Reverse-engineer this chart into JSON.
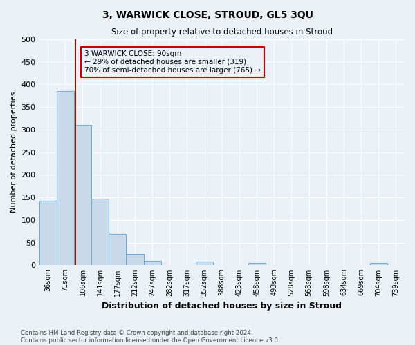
{
  "title": "3, WARWICK CLOSE, STROUD, GL5 3QU",
  "subtitle": "Size of property relative to detached houses in Stroud",
  "xlabel": "Distribution of detached houses by size in Stroud",
  "ylabel": "Number of detached properties",
  "bin_labels": [
    "36sqm",
    "71sqm",
    "106sqm",
    "141sqm",
    "177sqm",
    "212sqm",
    "247sqm",
    "282sqm",
    "317sqm",
    "352sqm",
    "388sqm",
    "423sqm",
    "458sqm",
    "493sqm",
    "528sqm",
    "563sqm",
    "598sqm",
    "634sqm",
    "669sqm",
    "704sqm",
    "739sqm"
  ],
  "bar_heights": [
    143,
    385,
    310,
    147,
    70,
    25,
    10,
    0,
    0,
    8,
    0,
    0,
    5,
    0,
    0,
    0,
    0,
    0,
    0,
    5,
    0
  ],
  "bar_color": "#c8daea",
  "bar_edge_color": "#6aaad4",
  "vline_x_index": 1.57,
  "vline_color": "#cc0000",
  "ylim": [
    0,
    500
  ],
  "yticks": [
    0,
    50,
    100,
    150,
    200,
    250,
    300,
    350,
    400,
    450,
    500
  ],
  "annotation_text": "3 WARWICK CLOSE: 90sqm\n← 29% of detached houses are smaller (319)\n70% of semi-detached houses are larger (765) →",
  "annotation_box_color": "#cc0000",
  "footer_line1": "Contains HM Land Registry data © Crown copyright and database right 2024.",
  "footer_line2": "Contains public sector information licensed under the Open Government Licence v3.0.",
  "n_bins": 21,
  "background_color": "#eaf0f6",
  "grid_color": "#ffffff"
}
